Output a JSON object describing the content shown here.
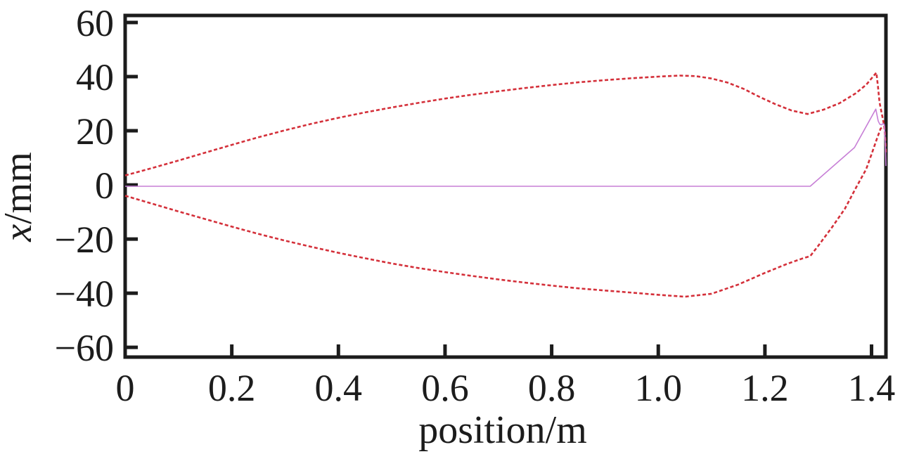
{
  "figure": {
    "description": "Beam envelope and central trajectory plot",
    "background_color": "#ffffff",
    "frame_color": "#1c1c1c"
  },
  "chart_data": {
    "type": "line",
    "title": "",
    "xlabel": "position/m",
    "ylabel": "x/mm",
    "ylabel_italic": "x",
    "ylabel_unit": "/mm",
    "xlim": [
      0,
      1.427
    ],
    "ylim": [
      -63.6,
      62.6
    ],
    "grid": false,
    "legend": "none",
    "x_ticks": {
      "values": [
        0,
        0.2,
        0.4,
        0.6,
        0.8,
        1.0,
        1.2,
        1.4
      ],
      "labels": [
        "0",
        "0.2",
        "0.4",
        "0.6",
        "0.8",
        "1.0",
        "1.2",
        "1.4"
      ]
    },
    "y_ticks": {
      "values": [
        60,
        40,
        20,
        0,
        -20,
        -40,
        -60
      ],
      "labels": [
        "60",
        "40",
        "20",
        "0",
        "−20",
        "−40",
        "−60"
      ]
    },
    "series": [
      {
        "name": "upper-beam-envelope",
        "color": "#d4303a",
        "style": "dashed",
        "width": 2.6,
        "points": [
          [
            0,
            3.5
          ],
          [
            0.05,
            6.2
          ],
          [
            0.1,
            9.0
          ],
          [
            0.15,
            11.9
          ],
          [
            0.2,
            14.8
          ],
          [
            0.25,
            17.6
          ],
          [
            0.3,
            20.2
          ],
          [
            0.35,
            22.6
          ],
          [
            0.4,
            24.8
          ],
          [
            0.45,
            26.8
          ],
          [
            0.5,
            28.6
          ],
          [
            0.55,
            30.3
          ],
          [
            0.6,
            31.9
          ],
          [
            0.65,
            33.3
          ],
          [
            0.7,
            34.6
          ],
          [
            0.75,
            35.8
          ],
          [
            0.8,
            36.9
          ],
          [
            0.85,
            37.9
          ],
          [
            0.9,
            38.7
          ],
          [
            0.95,
            39.4
          ],
          [
            1.0,
            40.0
          ],
          [
            1.04,
            40.4
          ],
          [
            1.07,
            40.2
          ],
          [
            1.1,
            39.3
          ],
          [
            1.13,
            37.8
          ],
          [
            1.16,
            35.5
          ],
          [
            1.19,
            32.5
          ],
          [
            1.22,
            29.8
          ],
          [
            1.25,
            27.5
          ],
          [
            1.28,
            26.2
          ],
          [
            1.31,
            27.8
          ],
          [
            1.34,
            30.2
          ],
          [
            1.37,
            33.8
          ],
          [
            1.39,
            37.0
          ],
          [
            1.409,
            41.5
          ],
          [
            1.412,
            36.5
          ],
          [
            1.415,
            30.5
          ],
          [
            1.418,
            27.5
          ],
          [
            1.421,
            24.5
          ],
          [
            1.424,
            21.5
          ],
          [
            1.426,
            16.5
          ],
          [
            1.427,
            12.0
          ]
        ]
      },
      {
        "name": "lower-beam-envelope",
        "color": "#d4303a",
        "style": "dashed",
        "width": 2.6,
        "points": [
          [
            0,
            -4.0
          ],
          [
            0.05,
            -6.9
          ],
          [
            0.1,
            -9.8
          ],
          [
            0.15,
            -12.6
          ],
          [
            0.2,
            -15.4
          ],
          [
            0.25,
            -18.1
          ],
          [
            0.3,
            -20.6
          ],
          [
            0.35,
            -22.9
          ],
          [
            0.4,
            -25.1
          ],
          [
            0.45,
            -27.1
          ],
          [
            0.5,
            -29.0
          ],
          [
            0.55,
            -30.7
          ],
          [
            0.6,
            -32.2
          ],
          [
            0.65,
            -33.6
          ],
          [
            0.7,
            -34.9
          ],
          [
            0.75,
            -36.1
          ],
          [
            0.8,
            -37.2
          ],
          [
            0.85,
            -38.2
          ],
          [
            0.9,
            -39.0
          ],
          [
            0.95,
            -39.8
          ],
          [
            1.0,
            -40.6
          ],
          [
            1.05,
            -41.3
          ],
          [
            1.1,
            -40.2
          ],
          [
            1.15,
            -36.8
          ],
          [
            1.2,
            -32.5
          ],
          [
            1.24,
            -29.3
          ],
          [
            1.27,
            -27.2
          ],
          [
            1.285,
            -26.3
          ],
          [
            1.3,
            -22.5
          ],
          [
            1.326,
            -15.6
          ],
          [
            1.35,
            -8.8
          ],
          [
            1.371,
            -1.0
          ],
          [
            1.39,
            5.8
          ],
          [
            1.401,
            11.9
          ],
          [
            1.41,
            17.0
          ],
          [
            1.417,
            20.8
          ],
          [
            1.422,
            21.6
          ]
        ]
      },
      {
        "name": "central-trajectory",
        "color": "#c77fd6",
        "style": "solid",
        "width": 1.6,
        "points": [
          [
            0,
            -0.5
          ],
          [
            1.285,
            -0.5
          ],
          [
            1.368,
            13.8
          ],
          [
            1.408,
            28.0
          ],
          [
            1.4125,
            23.6
          ],
          [
            1.4155,
            22.4
          ],
          [
            1.419,
            22.2
          ],
          [
            1.4215,
            22.7
          ],
          [
            1.424,
            22.3
          ],
          [
            1.426,
            15.0
          ],
          [
            1.427,
            7.0
          ]
        ]
      }
    ]
  }
}
